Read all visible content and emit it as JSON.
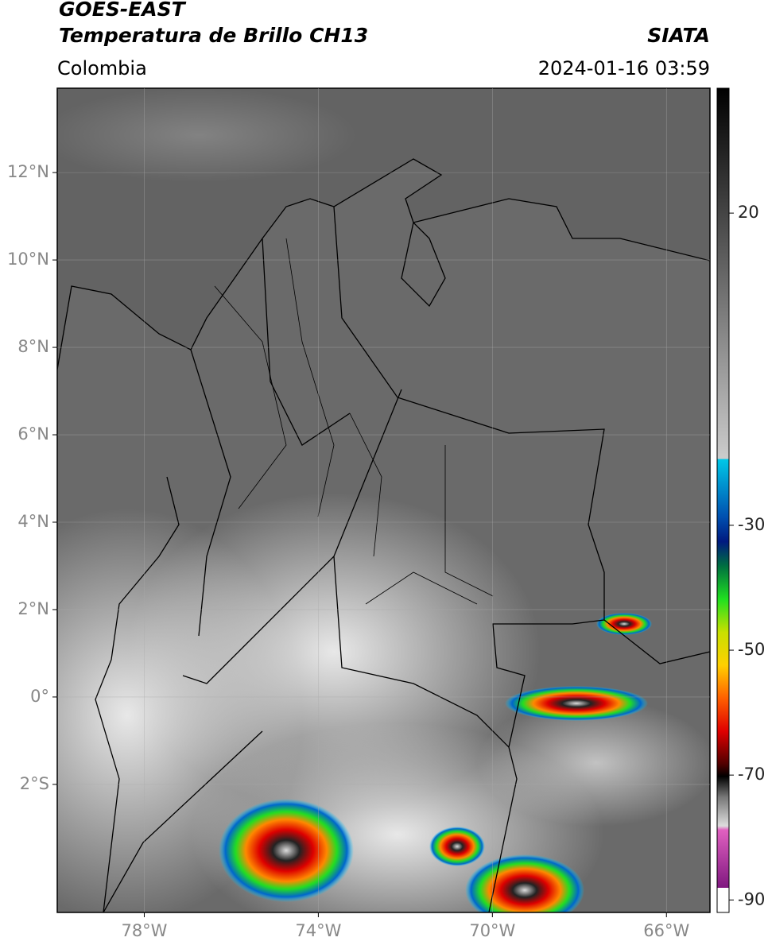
{
  "header": {
    "title": "GOES-EAST",
    "subtitle": "Temperatura de Brillo CH13",
    "source": "SIATA",
    "region": "Colombia",
    "datetime": "2024-01-16 03:59"
  },
  "map": {
    "xlim": [
      -80,
      -65
    ],
    "ylim": [
      -4.93,
      13.93
    ],
    "xticks": [
      {
        "value": -78,
        "label": "78°W"
      },
      {
        "value": -74,
        "label": "74°W"
      },
      {
        "value": -70,
        "label": "70°W"
      },
      {
        "value": -66,
        "label": "66°W"
      }
    ],
    "yticks": [
      {
        "value": 12,
        "label": "12°N"
      },
      {
        "value": 10,
        "label": "10°N"
      },
      {
        "value": 8,
        "label": "8°N"
      },
      {
        "value": 6,
        "label": "6°N"
      },
      {
        "value": 4,
        "label": "4°N"
      },
      {
        "value": 2,
        "label": "2°N"
      },
      {
        "value": 0,
        "label": "0°"
      },
      {
        "value": -2,
        "label": "2°S"
      }
    ],
    "grid": true
  },
  "colorbar": {
    "clim": [
      -92,
      40
    ],
    "ticks": [
      20,
      -30,
      -50,
      -70,
      -90
    ]
  }
}
